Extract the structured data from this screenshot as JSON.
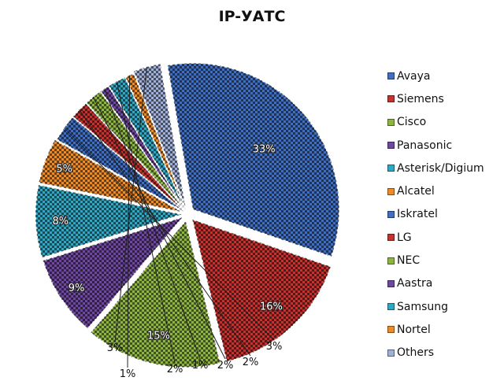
{
  "chart_data": {
    "type": "pie",
    "title": "IP-УАТС",
    "legend_position": "right",
    "label_format": "percent",
    "slices": [
      {
        "label": "Avaya",
        "value": 33,
        "color": "#3f6fc4"
      },
      {
        "label": "Siemens",
        "value": 16,
        "color": "#c8312e"
      },
      {
        "label": "Cisco",
        "value": 15,
        "color": "#8db640"
      },
      {
        "label": "Panasonic",
        "value": 9,
        "color": "#6e47a2"
      },
      {
        "label": "Asterisk/Digium",
        "value": 8,
        "color": "#2fa8c6"
      },
      {
        "label": "Alcatel",
        "value": 5,
        "color": "#f08a23"
      },
      {
        "label": "Iskratel",
        "value": 3,
        "color": "#3f6fc4"
      },
      {
        "label": "LG",
        "value": 2,
        "color": "#c8312e"
      },
      {
        "label": "NEC",
        "value": 2,
        "color": "#8db640"
      },
      {
        "label": "Aastra",
        "value": 1,
        "color": "#6e47a2"
      },
      {
        "label": "Samsung",
        "value": 2,
        "color": "#2fa8c6"
      },
      {
        "label": "Nortel",
        "value": 1,
        "color": "#f08a23"
      },
      {
        "label": "Others",
        "value": 3,
        "color": "#9fb0da"
      }
    ]
  }
}
